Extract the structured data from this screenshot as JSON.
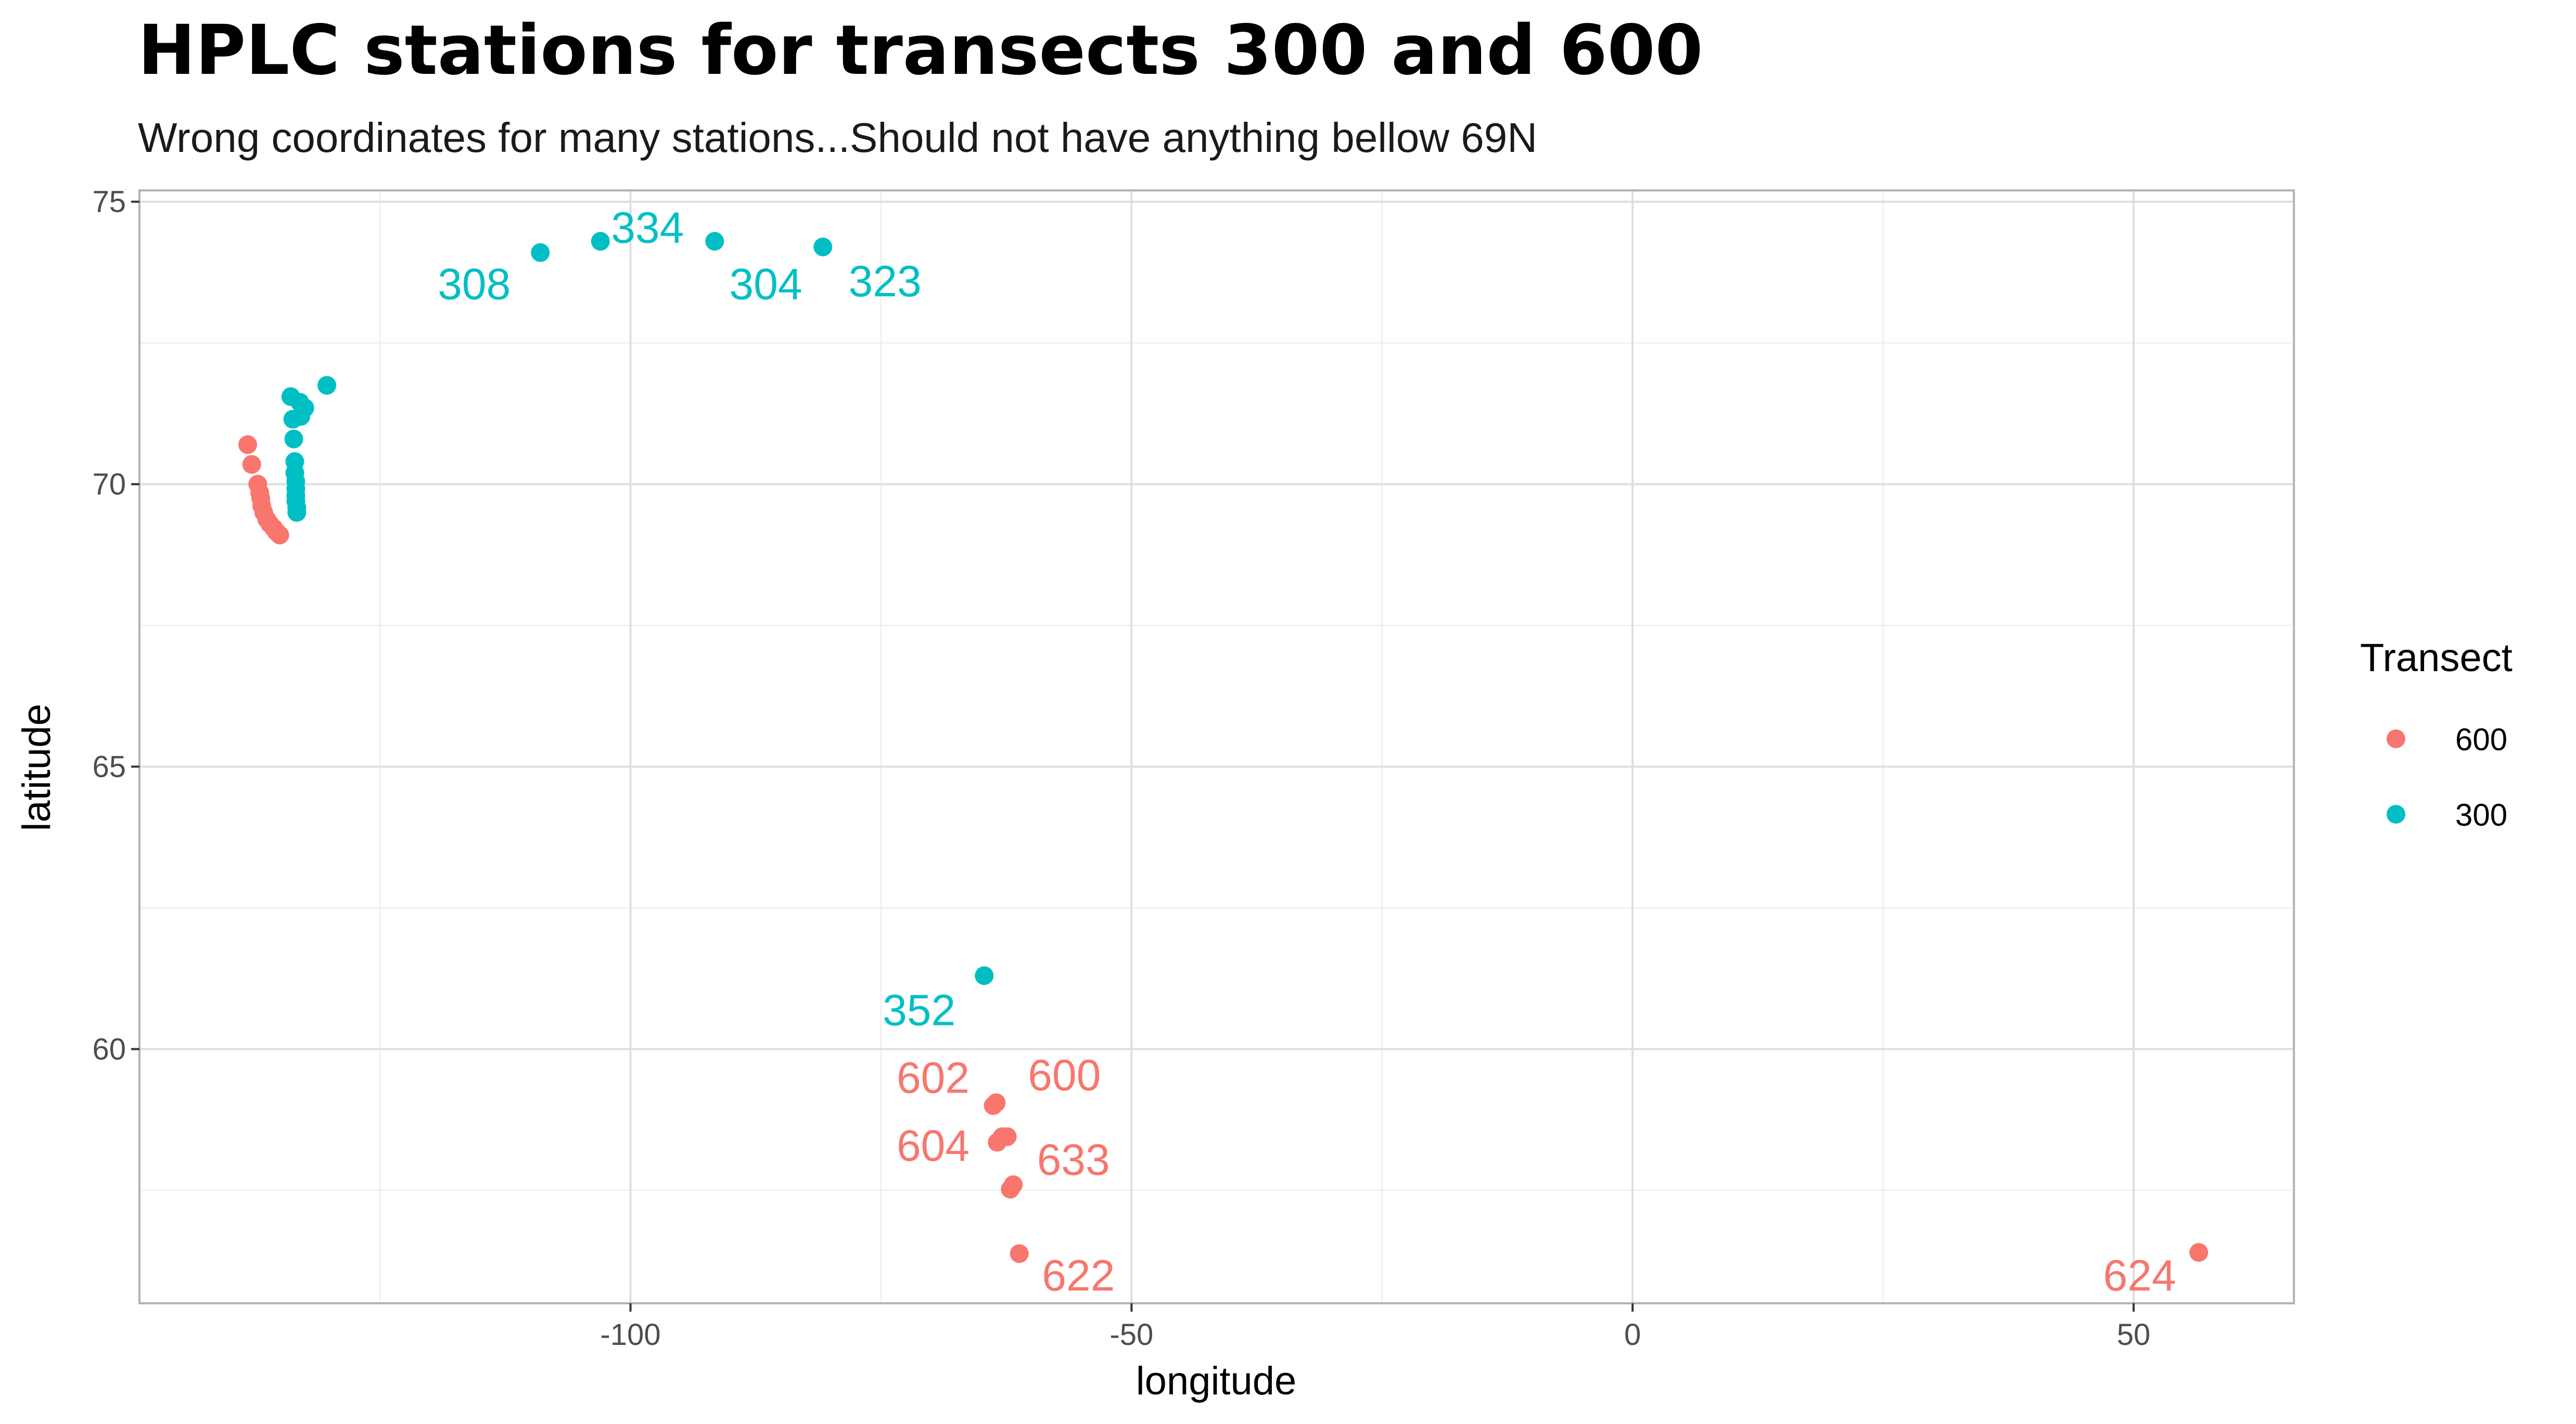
{
  "chart_data": {
    "type": "scatter",
    "title": "HPLC stations for transects 300 and 600",
    "subtitle": "Wrong coordinates for many stations...Should not have anything bellow 69N",
    "xlabel": "longitude",
    "ylabel": "latitude",
    "xlim": [
      -149,
      66
    ],
    "ylim": [
      55.5,
      75.2
    ],
    "x_ticks": [
      -100,
      -50,
      0,
      50
    ],
    "y_ticks": [
      60,
      65,
      70,
      75
    ],
    "x_tick_labels": [
      "-100",
      "-50",
      "0",
      "50"
    ],
    "y_tick_labels": [
      "60",
      "65",
      "70",
      "75"
    ],
    "grid": true,
    "legend": {
      "title": "Transect",
      "placement": "right",
      "entries": [
        {
          "name": "600",
          "color": "#F8766D"
        },
        {
          "name": "300",
          "color": "#00BFC4"
        }
      ]
    },
    "series": [
      {
        "name": "600",
        "color": "#F8766D",
        "points": [
          {
            "x": -138.2,
            "y": 70.7
          },
          {
            "x": -137.8,
            "y": 70.35
          },
          {
            "x": -137.2,
            "y": 70.0
          },
          {
            "x": -137.0,
            "y": 69.85
          },
          {
            "x": -136.9,
            "y": 69.75
          },
          {
            "x": -136.8,
            "y": 69.62
          },
          {
            "x": -136.6,
            "y": 69.5
          },
          {
            "x": -136.3,
            "y": 69.38
          },
          {
            "x": -136.0,
            "y": 69.3
          },
          {
            "x": -135.6,
            "y": 69.22
          },
          {
            "x": -135.3,
            "y": 69.15
          },
          {
            "x": -135.0,
            "y": 69.1
          },
          {
            "x": -63.8,
            "y": 59.0
          },
          {
            "x": -63.5,
            "y": 59.05
          },
          {
            "x": -63.4,
            "y": 58.35
          },
          {
            "x": -62.9,
            "y": 58.45
          },
          {
            "x": -62.4,
            "y": 58.45
          },
          {
            "x": -62.1,
            "y": 57.52
          },
          {
            "x": -61.8,
            "y": 57.6
          },
          {
            "x": -61.2,
            "y": 56.38
          },
          {
            "x": 56.5,
            "y": 56.4
          }
        ]
      },
      {
        "name": "300",
        "color": "#00BFC4",
        "points": [
          {
            "x": -109.0,
            "y": 74.1
          },
          {
            "x": -103.0,
            "y": 74.3
          },
          {
            "x": -91.6,
            "y": 74.3
          },
          {
            "x": -80.8,
            "y": 74.2
          },
          {
            "x": -130.3,
            "y": 71.75
          },
          {
            "x": -133.9,
            "y": 71.55
          },
          {
            "x": -133.0,
            "y": 71.45
          },
          {
            "x": -132.5,
            "y": 71.35
          },
          {
            "x": -132.9,
            "y": 71.2
          },
          {
            "x": -133.7,
            "y": 71.15
          },
          {
            "x": -133.6,
            "y": 70.8
          },
          {
            "x": -133.5,
            "y": 70.4
          },
          {
            "x": -133.5,
            "y": 70.2
          },
          {
            "x": -133.4,
            "y": 70.05
          },
          {
            "x": -133.4,
            "y": 69.92
          },
          {
            "x": -133.4,
            "y": 69.8
          },
          {
            "x": -133.4,
            "y": 69.7
          },
          {
            "x": -133.3,
            "y": 69.58
          },
          {
            "x": -133.3,
            "y": 69.5
          },
          {
            "x": -64.7,
            "y": 61.3
          }
        ]
      }
    ],
    "annotations": [
      {
        "text": "308",
        "x": -115.6,
        "y": 73.55,
        "series": "300"
      },
      {
        "text": "334",
        "x": -98.3,
        "y": 74.55,
        "series": "300"
      },
      {
        "text": "304",
        "x": -86.5,
        "y": 73.55,
        "series": "300"
      },
      {
        "text": "323",
        "x": -74.6,
        "y": 73.6,
        "series": "300"
      },
      {
        "text": "352",
        "x": -71.2,
        "y": 60.7,
        "series": "300"
      },
      {
        "text": "602",
        "x": -69.8,
        "y": 59.5,
        "series": "600"
      },
      {
        "text": "600",
        "x": -56.7,
        "y": 59.55,
        "series": "600"
      },
      {
        "text": "604",
        "x": -69.8,
        "y": 58.3,
        "series": "600"
      },
      {
        "text": "633",
        "x": -55.8,
        "y": 58.05,
        "series": "600"
      },
      {
        "text": "622",
        "x": -55.3,
        "y": 56.0,
        "series": "600"
      },
      {
        "text": "624",
        "x": 50.6,
        "y": 56.0,
        "series": "600"
      }
    ]
  }
}
